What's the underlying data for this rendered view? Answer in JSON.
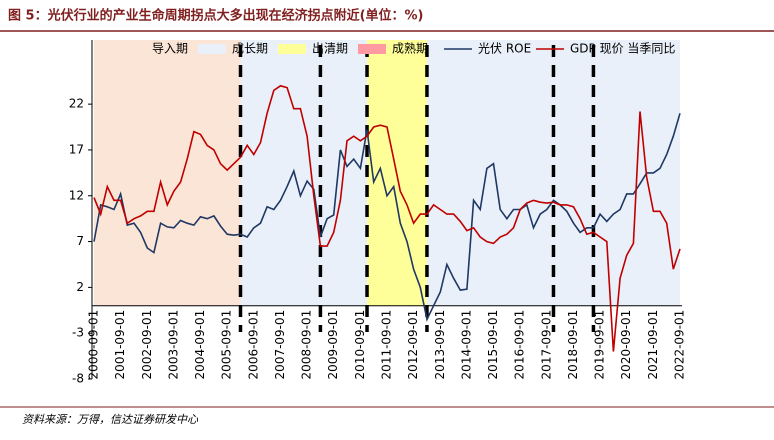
{
  "chart_data": {
    "type": "line",
    "title": "图 5：光伏行业的产业生命周期拐点大多出现在经济拐点附近(单位：%)",
    "source": "资料来源：万得，信达证券研发中心",
    "categories": [
      "2000-09-01",
      null,
      null,
      null,
      "2001-09-01",
      null,
      null,
      null,
      "2002-09-01",
      null,
      null,
      null,
      "2003-09-01",
      null,
      null,
      null,
      "2004-09-01",
      null,
      null,
      null,
      "2005-09-01",
      null,
      null,
      null,
      "2006-09-01",
      null,
      null,
      null,
      "2007-09-01",
      null,
      null,
      null,
      "2008-09-01",
      null,
      null,
      null,
      "2009-09-01",
      null,
      null,
      null,
      "2010-09-01",
      null,
      null,
      null,
      "2011-09-01",
      null,
      null,
      null,
      "2012-09-01",
      null,
      null,
      null,
      "2013-09-01",
      null,
      null,
      null,
      "2014-09-01",
      null,
      null,
      null,
      "2015-09-01",
      null,
      null,
      null,
      "2016-09-01",
      null,
      null,
      null,
      "2017-09-01",
      null,
      null,
      null,
      "2018-09-01",
      null,
      null,
      null,
      "2019-09-01",
      null,
      null,
      null,
      "2020-09-01",
      null,
      null,
      null,
      "2021-09-01",
      null,
      null,
      null,
      "2022-09-01"
    ],
    "ylim": [
      -8,
      29
    ],
    "yticks": [
      -8,
      -3,
      2,
      7,
      12,
      17,
      22
    ],
    "periods": [
      {
        "name": "导入期",
        "color": "#fbe5d6",
        "ranges": [
          [
            0,
            22
          ]
        ]
      },
      {
        "name": "成长期",
        "color": "#eaf0f9",
        "ranges": [
          [
            22,
            41
          ],
          [
            50,
            88
          ]
        ]
      },
      {
        "name": "出清期",
        "color": "#ffff99",
        "ranges": [
          [
            41,
            50
          ]
        ]
      },
      {
        "name": "成熟期",
        "color": "#ff9aa2",
        "ranges": []
      }
    ],
    "dividers": [
      22,
      34,
      41,
      50,
      69,
      75
    ],
    "series": [
      {
        "name": "光伏 ROE",
        "color": "#1f3864",
        "values": [
          7,
          11,
          10.8,
          10.5,
          12.2,
          8.8,
          9,
          8,
          6.3,
          5.8,
          9,
          8.6,
          8.5,
          9.3,
          9,
          8.8,
          9.7,
          9.5,
          9.8,
          8.7,
          7.8,
          7.7,
          7.8,
          7.5,
          8.5,
          9,
          10.8,
          10.5,
          11.5,
          13,
          14.7,
          12,
          13.6,
          12.7,
          7.5,
          9.5,
          9.9,
          17,
          15.2,
          16,
          15,
          19.2,
          13.5,
          15,
          12,
          13,
          9,
          7,
          4,
          2,
          -1.5,
          0,
          1.5,
          4.5,
          3,
          1.7,
          1.8,
          11.5,
          10.5,
          15,
          15.5,
          10.5,
          9.5,
          10.5,
          10.5,
          11,
          8.5,
          10,
          10.5,
          11.5,
          11,
          10.3,
          9,
          8,
          8.5,
          8.5,
          10,
          9.2,
          10,
          10.5,
          12.2,
          12.2,
          13.3,
          14.5,
          14.5,
          15,
          16.5,
          18.5,
          21
        ]
      },
      {
        "name": "GDP 现价 当季同比",
        "color": "#c00000",
        "values": [
          11.8,
          10,
          13,
          11.5,
          11.5,
          9,
          9.5,
          9.8,
          10.3,
          10.3,
          13.5,
          11,
          12.5,
          13.5,
          16,
          19,
          18.7,
          17.5,
          17,
          15.5,
          14.8,
          15.5,
          16.2,
          17.5,
          16.5,
          17.8,
          21,
          23.5,
          24,
          23.8,
          21.5,
          21.5,
          18.5,
          12,
          6.5,
          6.5,
          8,
          11.5,
          18,
          18.5,
          18,
          18.5,
          19.5,
          19.7,
          19.5,
          16,
          12.5,
          11,
          9,
          10,
          10,
          11,
          10.5,
          10,
          10,
          9.2,
          8.2,
          8.5,
          7.5,
          7,
          6.8,
          7.5,
          7.8,
          8.5,
          10.5,
          11.2,
          11.5,
          11.3,
          11.2,
          11.3,
          11,
          11,
          10.8,
          9.5,
          7.8,
          8,
          7.5,
          7,
          -5,
          3,
          5.5,
          6.8,
          21.2,
          14,
          10.3,
          10.3,
          9,
          4,
          6.2
        ]
      }
    ]
  }
}
